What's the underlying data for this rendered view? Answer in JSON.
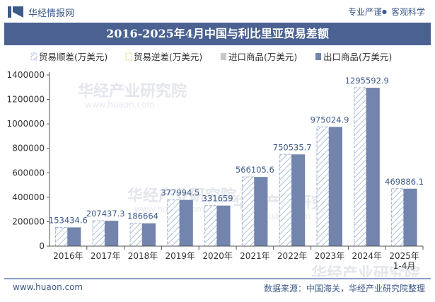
{
  "header": {
    "brand": "华经情报网",
    "tagline_left": "专业严谨",
    "tagline_dot": "●",
    "tagline_right": "客观科学"
  },
  "title": "2016-2025年4月中国与利比里亚贸易差额",
  "footer": {
    "url": "www.huaon.com",
    "source": "数据来源：中国海关，华经产业研究院整理"
  },
  "watermark": {
    "text": "华经产业研究院",
    "url": "www.huaon.com"
  },
  "colors": {
    "primary": "#4a6191",
    "export_bar": "#7385ad",
    "surplus_hatch": "#9db0d0",
    "deficit_outline": "#f0d070",
    "import_marker": "#c8c8c8",
    "text": "#3d5a8a"
  },
  "chart_data": {
    "type": "bar",
    "title": "2016-2025年4月中国与利比里亚贸易差额",
    "categories": [
      "2016年",
      "2017年",
      "2018年",
      "2019年",
      "2020年",
      "2021年",
      "2022年",
      "2023年",
      "2024年",
      "2025年\n1-4月"
    ],
    "series": [
      {
        "name": "贸易顺差(万美元)",
        "values": [
          153434.6,
          207437.3,
          186664,
          377994.5,
          331659,
          566105.6,
          750535.7,
          975024.9,
          1295592.9,
          469886.1
        ],
        "labels": [
          "153434.6",
          "207437.3",
          "186664",
          "377994.5",
          "331659",
          "566105.6",
          "750535.7",
          "975024.9",
          "1295592.9",
          "469886.1"
        ]
      },
      {
        "name": "贸易逆差(万美元)",
        "values": [
          0,
          0,
          0,
          0,
          0,
          0,
          0,
          0,
          0,
          0
        ]
      },
      {
        "name": "进口商品(万美元)",
        "values": [
          0,
          0,
          0,
          0,
          0,
          0,
          0,
          0,
          0,
          0
        ]
      },
      {
        "name": "出口商品(万美元)",
        "values": [
          153434.6,
          207437.3,
          186664,
          377994.5,
          331659,
          566105.6,
          750535.7,
          975024.9,
          1295592.9,
          469886.1
        ]
      }
    ],
    "y_ticks": [
      "0",
      "200000",
      "400000",
      "600000",
      "800000",
      "1000000",
      "1200000",
      "1400000"
    ],
    "ylim": [
      0,
      1400000
    ],
    "grid": false,
    "legend_position": "top"
  }
}
